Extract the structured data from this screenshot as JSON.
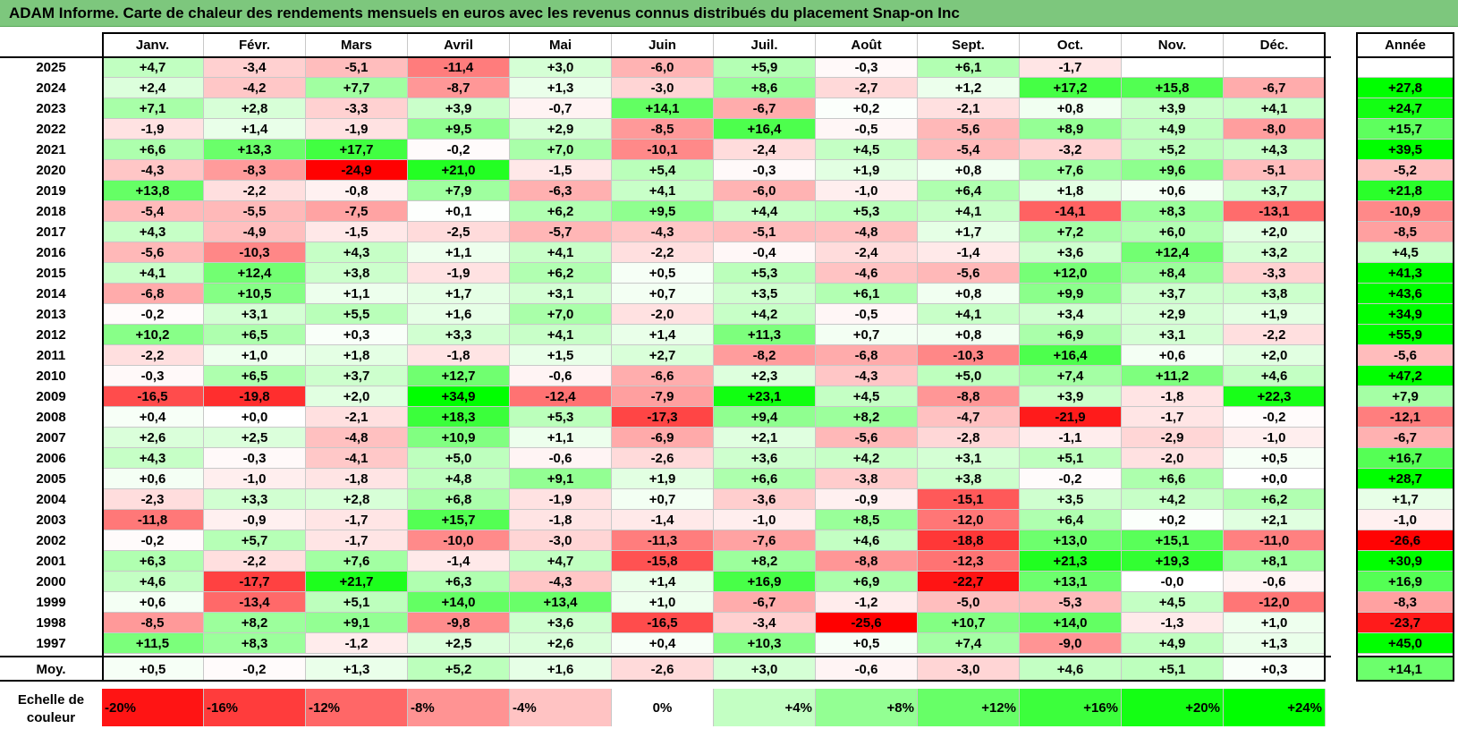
{
  "title": "ADAM Informe. Carte de chaleur des rendements mensuels en euros avec les revenus connus distribués du placement Snap-on Inc",
  "chart_data": {
    "type": "heatmap",
    "months": [
      "Janv.",
      "Févr.",
      "Mars",
      "Avril",
      "Mai",
      "Juin",
      "Juil.",
      "Août",
      "Sept.",
      "Oct.",
      "Nov.",
      "Déc."
    ],
    "annual_header": "Année",
    "rows": [
      {
        "year": "2025",
        "values": [
          "+4,7",
          "-3,4",
          "-5,1",
          "-11,4",
          "+3,0",
          "-6,0",
          "+5,9",
          "-0,3",
          "+6,1",
          "-1,7",
          "",
          ""
        ],
        "annual": ""
      },
      {
        "year": "2024",
        "values": [
          "+2,4",
          "-4,2",
          "+7,7",
          "-8,7",
          "+1,3",
          "-3,0",
          "+8,6",
          "-2,7",
          "+1,2",
          "+17,2",
          "+15,8",
          "-6,7"
        ],
        "annual": "+27,8"
      },
      {
        "year": "2023",
        "values": [
          "+7,1",
          "+2,8",
          "-3,3",
          "+3,9",
          "-0,7",
          "+14,1",
          "-6,7",
          "+0,2",
          "-2,1",
          "+0,8",
          "+3,9",
          "+4,1"
        ],
        "annual": "+24,7"
      },
      {
        "year": "2022",
        "values": [
          "-1,9",
          "+1,4",
          "-1,9",
          "+9,5",
          "+2,9",
          "-8,5",
          "+16,4",
          "-0,5",
          "-5,6",
          "+8,9",
          "+4,9",
          "-8,0"
        ],
        "annual": "+15,7"
      },
      {
        "year": "2021",
        "values": [
          "+6,6",
          "+13,3",
          "+17,7",
          "-0,2",
          "+7,0",
          "-10,1",
          "-2,4",
          "+4,5",
          "-5,4",
          "-3,2",
          "+5,2",
          "+4,3"
        ],
        "annual": "+39,5"
      },
      {
        "year": "2020",
        "values": [
          "-4,3",
          "-8,3",
          "-24,9",
          "+21,0",
          "-1,5",
          "+5,4",
          "-0,3",
          "+1,9",
          "+0,8",
          "+7,6",
          "+9,6",
          "-5,1"
        ],
        "annual": "-5,2"
      },
      {
        "year": "2019",
        "values": [
          "+13,8",
          "-2,2",
          "-0,8",
          "+7,9",
          "-6,3",
          "+4,1",
          "-6,0",
          "-1,0",
          "+6,4",
          "+1,8",
          "+0,6",
          "+3,7"
        ],
        "annual": "+21,8"
      },
      {
        "year": "2018",
        "values": [
          "-5,4",
          "-5,5",
          "-7,5",
          "+0,1",
          "+6,2",
          "+9,5",
          "+4,4",
          "+5,3",
          "+4,1",
          "-14,1",
          "+8,3",
          "-13,1"
        ],
        "annual": "-10,9"
      },
      {
        "year": "2017",
        "values": [
          "+4,3",
          "-4,9",
          "-1,5",
          "-2,5",
          "-5,7",
          "-4,3",
          "-5,1",
          "-4,8",
          "+1,7",
          "+7,2",
          "+6,0",
          "+2,0"
        ],
        "annual": "-8,5"
      },
      {
        "year": "2016",
        "values": [
          "-5,6",
          "-10,3",
          "+4,3",
          "+1,1",
          "+4,1",
          "-2,2",
          "-0,4",
          "-2,4",
          "-1,4",
          "+3,6",
          "+12,4",
          "+3,2"
        ],
        "annual": "+4,5"
      },
      {
        "year": "2015",
        "values": [
          "+4,1",
          "+12,4",
          "+3,8",
          "-1,9",
          "+6,2",
          "+0,5",
          "+5,3",
          "-4,6",
          "-5,6",
          "+12,0",
          "+8,4",
          "-3,3"
        ],
        "annual": "+41,3"
      },
      {
        "year": "2014",
        "values": [
          "-6,8",
          "+10,5",
          "+1,1",
          "+1,7",
          "+3,1",
          "+0,7",
          "+3,5",
          "+6,1",
          "+0,8",
          "+9,9",
          "+3,7",
          "+3,8"
        ],
        "annual": "+43,6"
      },
      {
        "year": "2013",
        "values": [
          "-0,2",
          "+3,1",
          "+5,5",
          "+1,6",
          "+7,0",
          "-2,0",
          "+4,2",
          "-0,5",
          "+4,1",
          "+3,4",
          "+2,9",
          "+1,9"
        ],
        "annual": "+34,9"
      },
      {
        "year": "2012",
        "values": [
          "+10,2",
          "+6,5",
          "+0,3",
          "+3,3",
          "+4,1",
          "+1,4",
          "+11,3",
          "+0,7",
          "+0,8",
          "+6,9",
          "+3,1",
          "-2,2"
        ],
        "annual": "+55,9"
      },
      {
        "year": "2011",
        "values": [
          "-2,2",
          "+1,0",
          "+1,8",
          "-1,8",
          "+1,5",
          "+2,7",
          "-8,2",
          "-6,8",
          "-10,3",
          "+16,4",
          "+0,6",
          "+2,0"
        ],
        "annual": "-5,6"
      },
      {
        "year": "2010",
        "values": [
          "-0,3",
          "+6,5",
          "+3,7",
          "+12,7",
          "-0,6",
          "-6,6",
          "+2,3",
          "-4,3",
          "+5,0",
          "+7,4",
          "+11,2",
          "+4,6"
        ],
        "annual": "+47,2"
      },
      {
        "year": "2009",
        "values": [
          "-16,5",
          "-19,8",
          "+2,0",
          "+34,9",
          "-12,4",
          "-7,9",
          "+23,1",
          "+4,5",
          "-8,8",
          "+3,9",
          "-1,8",
          "+22,3"
        ],
        "annual": "+7,9"
      },
      {
        "year": "2008",
        "values": [
          "+0,4",
          "+0,0",
          "-2,1",
          "+18,3",
          "+5,3",
          "-17,3",
          "+9,4",
          "+8,2",
          "-4,7",
          "-21,9",
          "-1,7",
          "-0,2"
        ],
        "annual": "-12,1"
      },
      {
        "year": "2007",
        "values": [
          "+2,6",
          "+2,5",
          "-4,8",
          "+10,9",
          "+1,1",
          "-6,9",
          "+2,1",
          "-5,6",
          "-2,8",
          "-1,1",
          "-2,9",
          "-1,0"
        ],
        "annual": "-6,7"
      },
      {
        "year": "2006",
        "values": [
          "+4,3",
          "-0,3",
          "-4,1",
          "+5,0",
          "-0,6",
          "-2,6",
          "+3,6",
          "+4,2",
          "+3,1",
          "+5,1",
          "-2,0",
          "+0,5"
        ],
        "annual": "+16,7"
      },
      {
        "year": "2005",
        "values": [
          "+0,6",
          "-1,0",
          "-1,8",
          "+4,8",
          "+9,1",
          "+1,9",
          "+6,6",
          "-3,8",
          "+3,8",
          "-0,2",
          "+6,6",
          "+0,0"
        ],
        "annual": "+28,7"
      },
      {
        "year": "2004",
        "values": [
          "-2,3",
          "+3,3",
          "+2,8",
          "+6,8",
          "-1,9",
          "+0,7",
          "-3,6",
          "-0,9",
          "-15,1",
          "+3,5",
          "+4,2",
          "+6,2"
        ],
        "annual": "+1,7"
      },
      {
        "year": "2003",
        "values": [
          "-11,8",
          "-0,9",
          "-1,7",
          "+15,7",
          "-1,8",
          "-1,4",
          "-1,0",
          "+8,5",
          "-12,0",
          "+6,4",
          "+0,2",
          "+2,1"
        ],
        "annual": "-1,0"
      },
      {
        "year": "2002",
        "values": [
          "-0,2",
          "+5,7",
          "-1,7",
          "-10,0",
          "-3,0",
          "-11,3",
          "-7,6",
          "+4,6",
          "-18,8",
          "+13,0",
          "+15,1",
          "-11,0"
        ],
        "annual": "-26,6"
      },
      {
        "year": "2001",
        "values": [
          "+6,3",
          "-2,2",
          "+7,6",
          "-1,4",
          "+4,7",
          "-15,8",
          "+8,2",
          "-8,8",
          "-12,3",
          "+21,3",
          "+19,3",
          "+8,1"
        ],
        "annual": "+30,9"
      },
      {
        "year": "2000",
        "values": [
          "+4,6",
          "-17,7",
          "+21,7",
          "+6,3",
          "-4,3",
          "+1,4",
          "+16,9",
          "+6,9",
          "-22,7",
          "+13,1",
          "-0,0",
          "-0,6"
        ],
        "annual": "+16,9"
      },
      {
        "year": "1999",
        "values": [
          "+0,6",
          "-13,4",
          "+5,1",
          "+14,0",
          "+13,4",
          "+1,0",
          "-6,7",
          "-1,2",
          "-5,0",
          "-5,3",
          "+4,5",
          "-12,0"
        ],
        "annual": "-8,3"
      },
      {
        "year": "1998",
        "values": [
          "-8,5",
          "+8,2",
          "+9,1",
          "-9,8",
          "+3,6",
          "-16,5",
          "-3,4",
          "-25,6",
          "+10,7",
          "+14,0",
          "-1,3",
          "+1,0"
        ],
        "annual": "-23,7"
      },
      {
        "year": "1997",
        "values": [
          "+11,5",
          "+8,3",
          "-1,2",
          "+2,5",
          "+2,6",
          "+0,4",
          "+10,3",
          "+0,5",
          "+7,4",
          "-9,0",
          "+4,9",
          "+1,3"
        ],
        "annual": "+45,0"
      }
    ],
    "average": {
      "label": "Moy.",
      "values": [
        "+0,5",
        "-0,2",
        "+1,3",
        "+5,2",
        "+1,6",
        "-2,6",
        "+3,0",
        "-0,6",
        "-3,0",
        "+4,6",
        "+5,1",
        "+0,3"
      ],
      "annual": "+14,1"
    },
    "scale": {
      "label_line1": "Echelle de",
      "label_line2": "couleur",
      "steps": [
        {
          "label": "-20%",
          "value": -20
        },
        {
          "label": "-16%",
          "value": -16
        },
        {
          "label": "-12%",
          "value": -12
        },
        {
          "label": "-8%",
          "value": -8
        },
        {
          "label": "-4%",
          "value": -4
        },
        {
          "label": "0%",
          "value": 0
        },
        {
          "label": "+4%",
          "value": 4
        },
        {
          "label": "+8%",
          "value": 8
        },
        {
          "label": "+12%",
          "value": 12
        },
        {
          "label": "+16%",
          "value": 16
        },
        {
          "label": "+20%",
          "value": 20
        },
        {
          "label": "+24%",
          "value": 24
        }
      ]
    },
    "colors": {
      "negative_max": "#ff0000",
      "neutral": "#ffffff",
      "positive_max": "#00ff00"
    }
  }
}
